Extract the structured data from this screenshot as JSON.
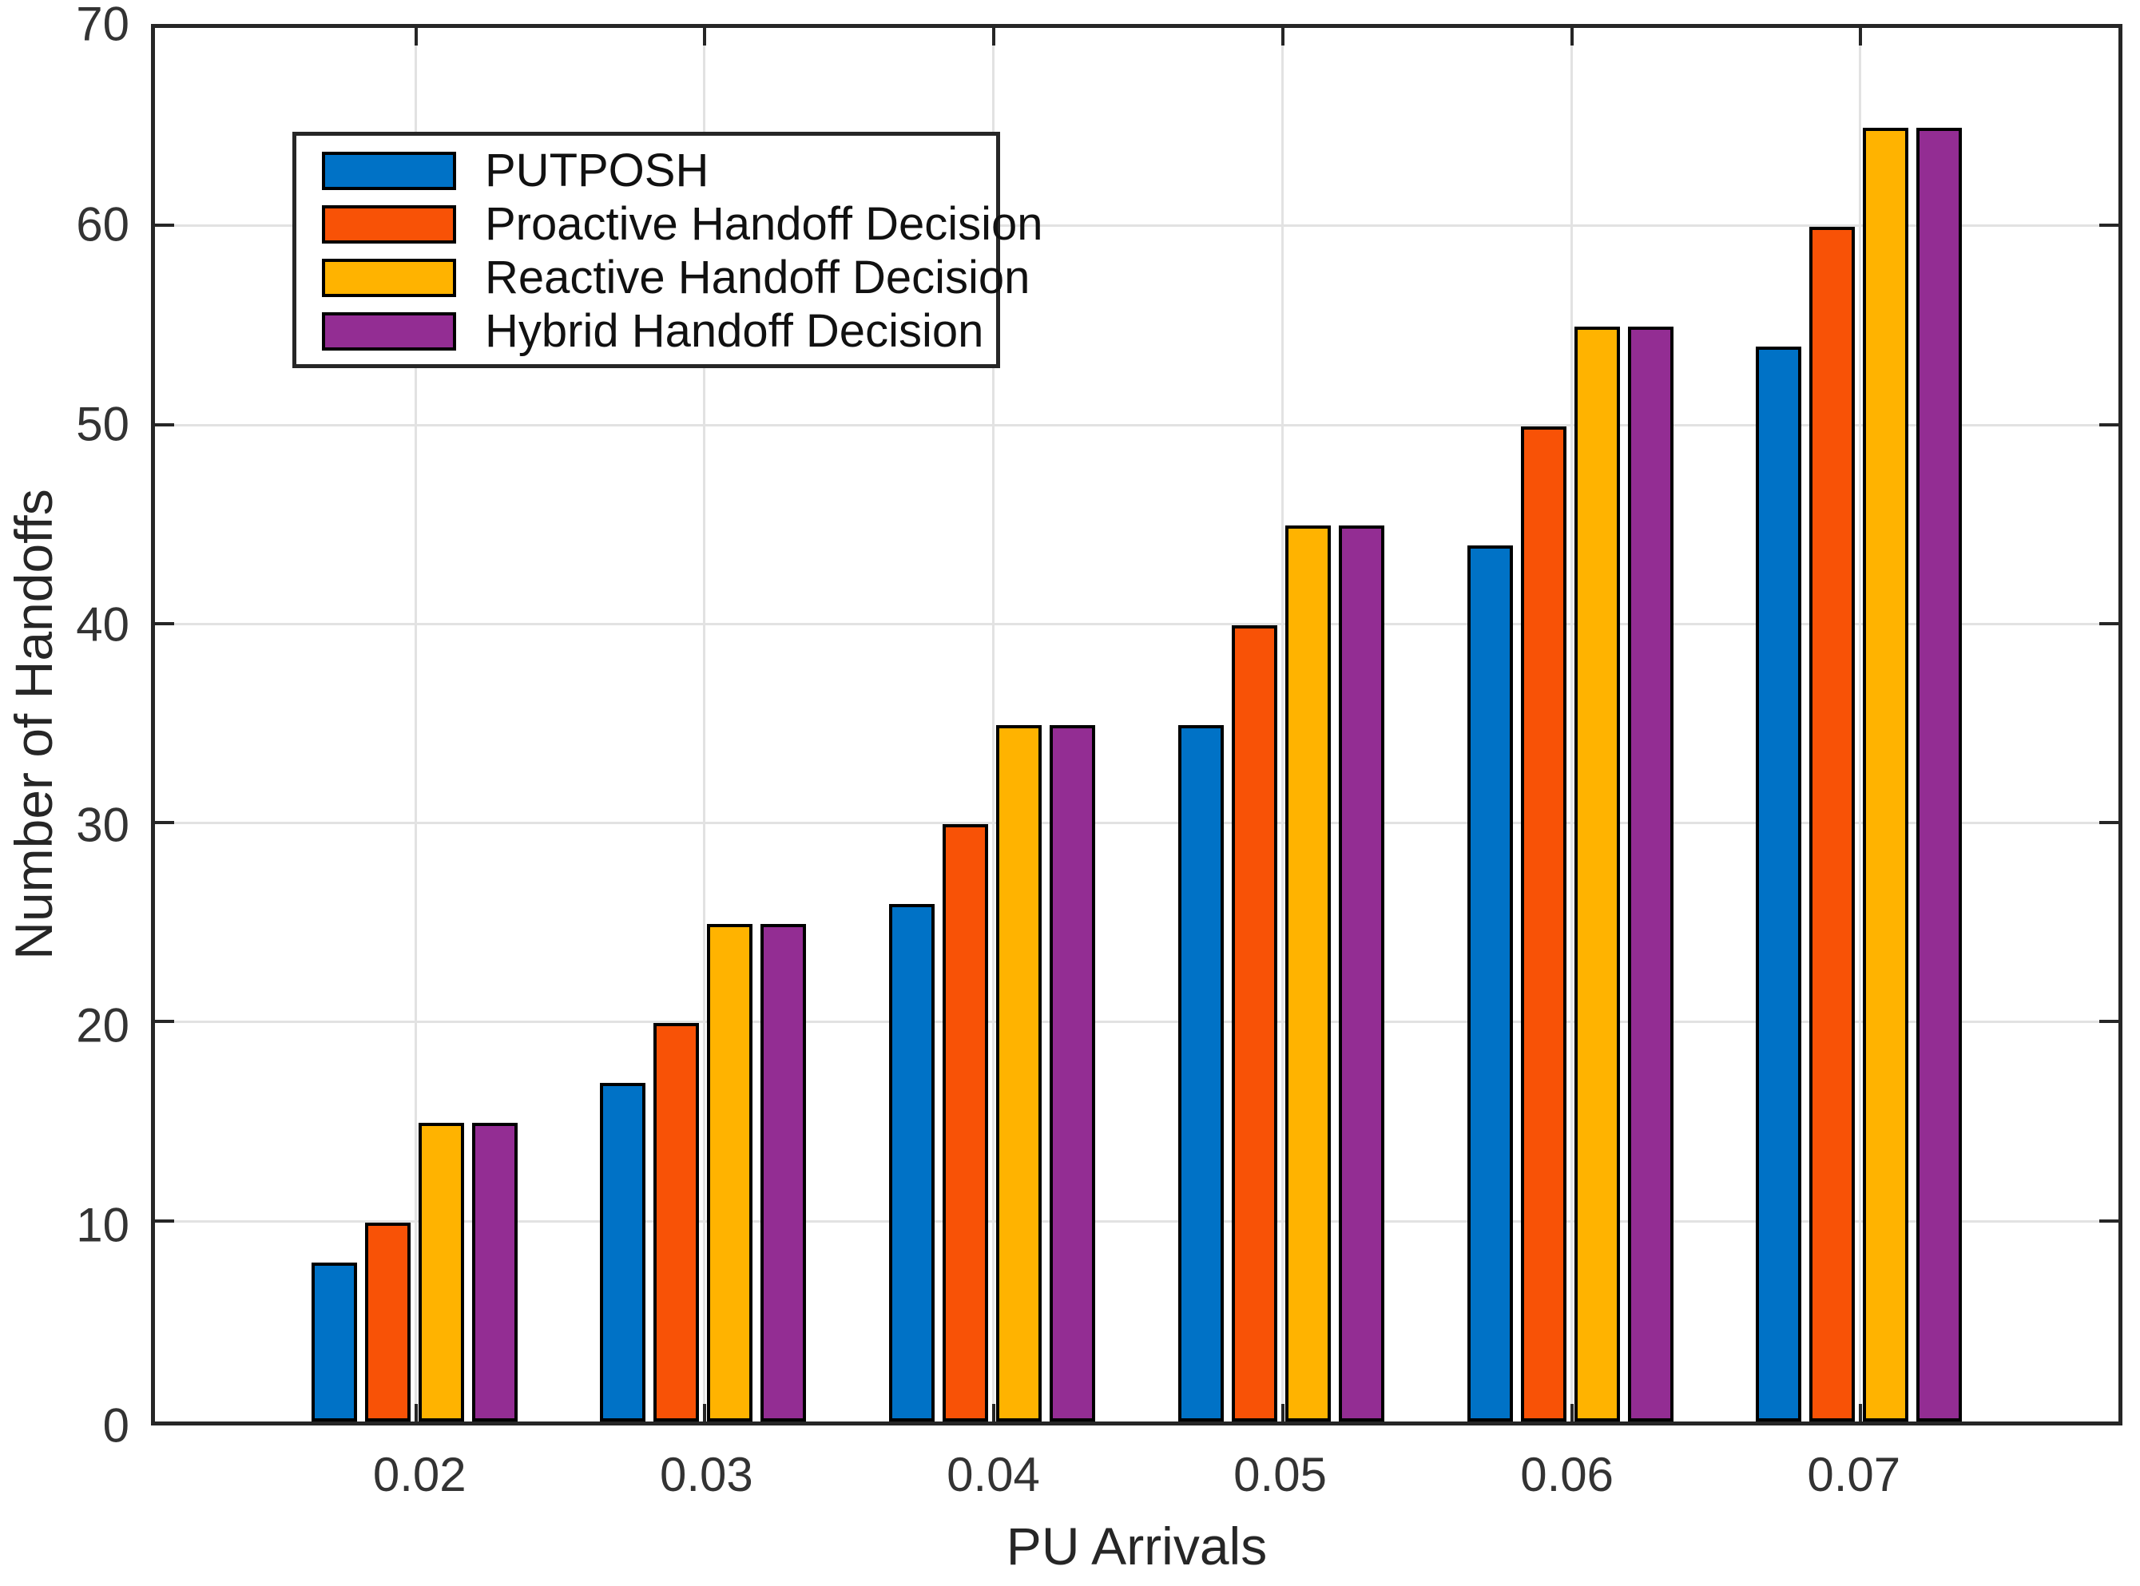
{
  "chart_data": {
    "type": "bar",
    "title": "",
    "xlabel": "PU Arrivals",
    "ylabel": "Number of Handoffs",
    "categories": [
      "0.02",
      "0.03",
      "0.04",
      "0.05",
      "0.06",
      "0.07"
    ],
    "series": [
      {
        "name": "PUTPOSH",
        "color": "#0072C6",
        "values": [
          8,
          17,
          26,
          35,
          44,
          54
        ]
      },
      {
        "name": "Proactive Handoff Decision",
        "color": "#F85206",
        "values": [
          10,
          20,
          30,
          40,
          50,
          60
        ]
      },
      {
        "name": "Reactive Handoff Decision",
        "color": "#FFB300",
        "values": [
          15,
          25,
          35,
          45,
          55,
          65
        ]
      },
      {
        "name": "Hybrid Handoff Decision",
        "color": "#932D93",
        "values": [
          15,
          25,
          35,
          45,
          55,
          65
        ]
      }
    ],
    "ylim": [
      0,
      70
    ],
    "yticks": [
      0,
      10,
      20,
      30,
      40,
      50,
      60,
      70
    ],
    "grid": true,
    "legend_position": "top-left-inside",
    "bar_outline_color": "#000000",
    "grid_color": "#E2E2E2",
    "axis_color": "#262626"
  }
}
